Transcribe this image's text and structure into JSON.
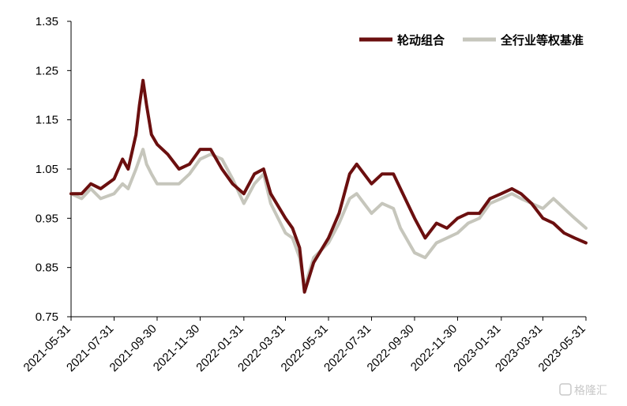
{
  "chart_data": {
    "type": "line",
    "title": "",
    "xlabel": "",
    "ylabel": "",
    "ylim": [
      0.75,
      1.35
    ],
    "y_ticks": [
      "0.75",
      "0.85",
      "0.95",
      "1.05",
      "1.15",
      "1.25",
      "1.35"
    ],
    "x_ticks": [
      "2021-05-31",
      "2021-07-31",
      "2021-09-30",
      "2021-11-30",
      "2022-01-31",
      "2022-03-31",
      "2022-05-31",
      "2022-07-31",
      "2022-09-30",
      "2022-11-30",
      "2023-01-31",
      "2023-03-31",
      "2023-05-31"
    ],
    "grid": false,
    "legend_position": "top-right",
    "series": [
      {
        "name": "轮动组合",
        "color": "#6b0f0f",
        "points": [
          [
            "2021-05-31",
            1.0
          ],
          [
            "2021-06-15",
            1.0
          ],
          [
            "2021-06-28",
            1.02
          ],
          [
            "2021-07-12",
            1.01
          ],
          [
            "2021-07-31",
            1.03
          ],
          [
            "2021-08-12",
            1.07
          ],
          [
            "2021-08-20",
            1.05
          ],
          [
            "2021-08-31",
            1.12
          ],
          [
            "2021-09-05",
            1.18
          ],
          [
            "2021-09-10",
            1.23
          ],
          [
            "2021-09-15",
            1.18
          ],
          [
            "2021-09-22",
            1.12
          ],
          [
            "2021-09-30",
            1.1
          ],
          [
            "2021-10-15",
            1.08
          ],
          [
            "2021-10-31",
            1.05
          ],
          [
            "2021-11-15",
            1.06
          ],
          [
            "2021-11-30",
            1.09
          ],
          [
            "2021-12-15",
            1.09
          ],
          [
            "2021-12-31",
            1.05
          ],
          [
            "2022-01-15",
            1.02
          ],
          [
            "2022-01-31",
            1.0
          ],
          [
            "2022-02-15",
            1.04
          ],
          [
            "2022-02-28",
            1.05
          ],
          [
            "2022-03-10",
            1.0
          ],
          [
            "2022-03-31",
            0.95
          ],
          [
            "2022-04-10",
            0.93
          ],
          [
            "2022-04-20",
            0.89
          ],
          [
            "2022-04-27",
            0.8
          ],
          [
            "2022-05-10",
            0.86
          ],
          [
            "2022-05-31",
            0.91
          ],
          [
            "2022-06-15",
            0.96
          ],
          [
            "2022-06-30",
            1.04
          ],
          [
            "2022-07-10",
            1.06
          ],
          [
            "2022-07-31",
            1.02
          ],
          [
            "2022-08-15",
            1.04
          ],
          [
            "2022-08-31",
            1.04
          ],
          [
            "2022-09-10",
            1.01
          ],
          [
            "2022-09-30",
            0.95
          ],
          [
            "2022-10-15",
            0.91
          ],
          [
            "2022-10-31",
            0.94
          ],
          [
            "2022-11-15",
            0.93
          ],
          [
            "2022-11-30",
            0.95
          ],
          [
            "2022-12-15",
            0.96
          ],
          [
            "2022-12-31",
            0.96
          ],
          [
            "2023-01-15",
            0.99
          ],
          [
            "2023-01-31",
            1.0
          ],
          [
            "2023-02-15",
            1.01
          ],
          [
            "2023-02-28",
            1.0
          ],
          [
            "2023-03-15",
            0.98
          ],
          [
            "2023-03-31",
            0.95
          ],
          [
            "2023-04-15",
            0.94
          ],
          [
            "2023-04-30",
            0.92
          ],
          [
            "2023-05-15",
            0.91
          ],
          [
            "2023-05-31",
            0.9
          ]
        ]
      },
      {
        "name": "全行业等权基准",
        "color": "#c6c6bc",
        "points": [
          [
            "2021-05-31",
            1.0
          ],
          [
            "2021-06-15",
            0.99
          ],
          [
            "2021-06-28",
            1.01
          ],
          [
            "2021-07-12",
            0.99
          ],
          [
            "2021-07-31",
            1.0
          ],
          [
            "2021-08-12",
            1.02
          ],
          [
            "2021-08-20",
            1.01
          ],
          [
            "2021-08-31",
            1.05
          ],
          [
            "2021-09-05",
            1.07
          ],
          [
            "2021-09-10",
            1.09
          ],
          [
            "2021-09-15",
            1.06
          ],
          [
            "2021-09-22",
            1.04
          ],
          [
            "2021-09-30",
            1.02
          ],
          [
            "2021-10-15",
            1.02
          ],
          [
            "2021-10-31",
            1.02
          ],
          [
            "2021-11-15",
            1.04
          ],
          [
            "2021-11-30",
            1.07
          ],
          [
            "2021-12-15",
            1.08
          ],
          [
            "2021-12-31",
            1.07
          ],
          [
            "2022-01-15",
            1.03
          ],
          [
            "2022-01-31",
            0.98
          ],
          [
            "2022-02-15",
            1.02
          ],
          [
            "2022-02-28",
            1.04
          ],
          [
            "2022-03-10",
            0.98
          ],
          [
            "2022-03-31",
            0.92
          ],
          [
            "2022-04-10",
            0.91
          ],
          [
            "2022-04-20",
            0.87
          ],
          [
            "2022-04-27",
            0.81
          ],
          [
            "2022-05-10",
            0.87
          ],
          [
            "2022-05-31",
            0.9
          ],
          [
            "2022-06-15",
            0.94
          ],
          [
            "2022-06-30",
            0.99
          ],
          [
            "2022-07-10",
            1.0
          ],
          [
            "2022-07-31",
            0.96
          ],
          [
            "2022-08-15",
            0.98
          ],
          [
            "2022-08-31",
            0.97
          ],
          [
            "2022-09-10",
            0.93
          ],
          [
            "2022-09-30",
            0.88
          ],
          [
            "2022-10-15",
            0.87
          ],
          [
            "2022-10-31",
            0.9
          ],
          [
            "2022-11-15",
            0.91
          ],
          [
            "2022-11-30",
            0.92
          ],
          [
            "2022-12-15",
            0.94
          ],
          [
            "2022-12-31",
            0.95
          ],
          [
            "2023-01-15",
            0.98
          ],
          [
            "2023-01-31",
            0.99
          ],
          [
            "2023-02-15",
            1.0
          ],
          [
            "2023-02-28",
            0.99
          ],
          [
            "2023-03-15",
            0.98
          ],
          [
            "2023-03-31",
            0.97
          ],
          [
            "2023-04-15",
            0.99
          ],
          [
            "2023-04-30",
            0.97
          ],
          [
            "2023-05-15",
            0.95
          ],
          [
            "2023-05-31",
            0.93
          ]
        ]
      }
    ]
  },
  "watermark": {
    "icon": "gelonghui-logo-icon",
    "text": "格隆汇"
  }
}
